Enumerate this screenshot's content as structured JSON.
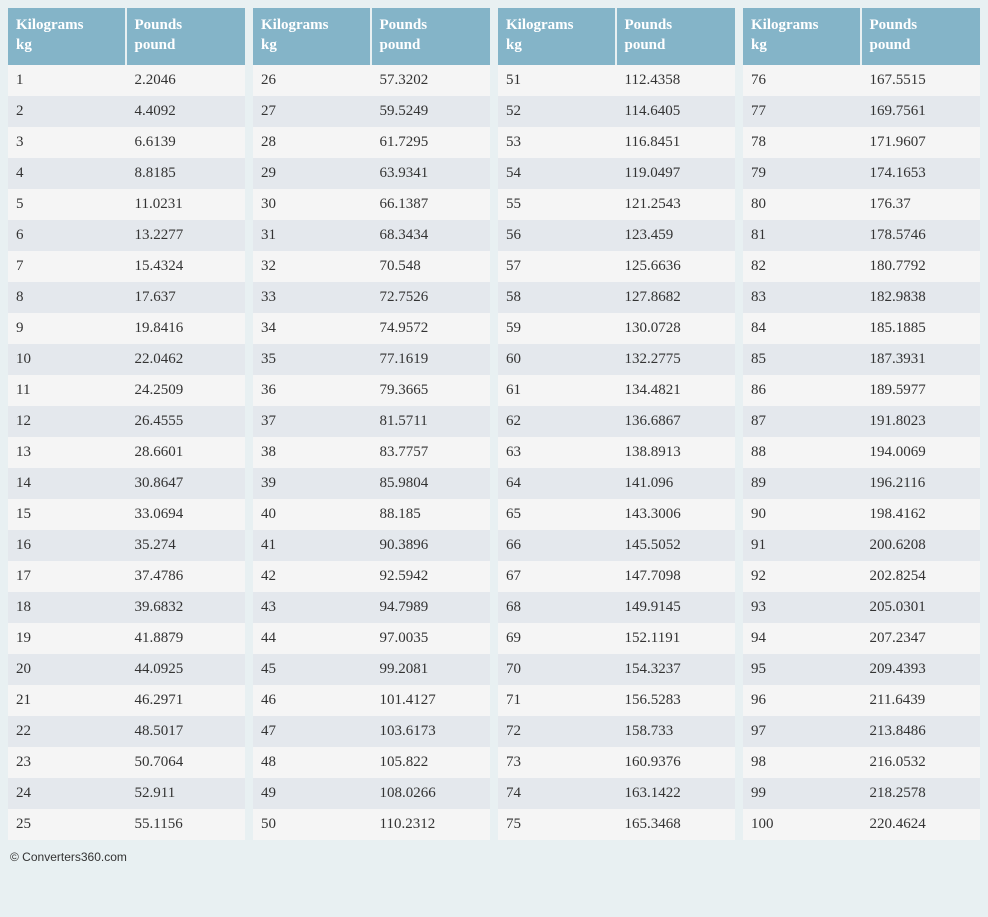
{
  "colors": {
    "page_bg": "#e8f0f2",
    "header_bg": "#84b4c8",
    "header_text": "#ffffff",
    "row_odd_bg": "#f5f5f5",
    "row_even_bg": "#e4e8ed",
    "cell_text": "#333333"
  },
  "typography": {
    "body_font": "Georgia, serif",
    "header_fontsize": 15,
    "cell_fontsize": 15,
    "copyright_font": "Arial, sans-serif",
    "copyright_fontsize": 12
  },
  "headers": {
    "kg_line1": "Kilograms",
    "kg_line2": "kg",
    "lb_line1": "Pounds",
    "lb_line2": "pound"
  },
  "copyright": "© Converters360.com",
  "tables": [
    {
      "rows": [
        {
          "kg": "1",
          "lb": "2.2046"
        },
        {
          "kg": "2",
          "lb": "4.4092"
        },
        {
          "kg": "3",
          "lb": "6.6139"
        },
        {
          "kg": "4",
          "lb": "8.8185"
        },
        {
          "kg": "5",
          "lb": "11.0231"
        },
        {
          "kg": "6",
          "lb": "13.2277"
        },
        {
          "kg": "7",
          "lb": "15.4324"
        },
        {
          "kg": "8",
          "lb": "17.637"
        },
        {
          "kg": "9",
          "lb": "19.8416"
        },
        {
          "kg": "10",
          "lb": "22.0462"
        },
        {
          "kg": "11",
          "lb": "24.2509"
        },
        {
          "kg": "12",
          "lb": "26.4555"
        },
        {
          "kg": "13",
          "lb": "28.6601"
        },
        {
          "kg": "14",
          "lb": "30.8647"
        },
        {
          "kg": "15",
          "lb": "33.0694"
        },
        {
          "kg": "16",
          "lb": "35.274"
        },
        {
          "kg": "17",
          "lb": "37.4786"
        },
        {
          "kg": "18",
          "lb": "39.6832"
        },
        {
          "kg": "19",
          "lb": "41.8879"
        },
        {
          "kg": "20",
          "lb": "44.0925"
        },
        {
          "kg": "21",
          "lb": "46.2971"
        },
        {
          "kg": "22",
          "lb": "48.5017"
        },
        {
          "kg": "23",
          "lb": "50.7064"
        },
        {
          "kg": "24",
          "lb": "52.911"
        },
        {
          "kg": "25",
          "lb": "55.1156"
        }
      ]
    },
    {
      "rows": [
        {
          "kg": "26",
          "lb": "57.3202"
        },
        {
          "kg": "27",
          "lb": "59.5249"
        },
        {
          "kg": "28",
          "lb": "61.7295"
        },
        {
          "kg": "29",
          "lb": "63.9341"
        },
        {
          "kg": "30",
          "lb": "66.1387"
        },
        {
          "kg": "31",
          "lb": "68.3434"
        },
        {
          "kg": "32",
          "lb": "70.548"
        },
        {
          "kg": "33",
          "lb": "72.7526"
        },
        {
          "kg": "34",
          "lb": "74.9572"
        },
        {
          "kg": "35",
          "lb": "77.1619"
        },
        {
          "kg": "36",
          "lb": "79.3665"
        },
        {
          "kg": "37",
          "lb": "81.5711"
        },
        {
          "kg": "38",
          "lb": "83.7757"
        },
        {
          "kg": "39",
          "lb": "85.9804"
        },
        {
          "kg": "40",
          "lb": "88.185"
        },
        {
          "kg": "41",
          "lb": "90.3896"
        },
        {
          "kg": "42",
          "lb": "92.5942"
        },
        {
          "kg": "43",
          "lb": "94.7989"
        },
        {
          "kg": "44",
          "lb": "97.0035"
        },
        {
          "kg": "45",
          "lb": "99.2081"
        },
        {
          "kg": "46",
          "lb": "101.4127"
        },
        {
          "kg": "47",
          "lb": "103.6173"
        },
        {
          "kg": "48",
          "lb": "105.822"
        },
        {
          "kg": "49",
          "lb": "108.0266"
        },
        {
          "kg": "50",
          "lb": "110.2312"
        }
      ]
    },
    {
      "rows": [
        {
          "kg": "51",
          "lb": "112.4358"
        },
        {
          "kg": "52",
          "lb": "114.6405"
        },
        {
          "kg": "53",
          "lb": "116.8451"
        },
        {
          "kg": "54",
          "lb": "119.0497"
        },
        {
          "kg": "55",
          "lb": "121.2543"
        },
        {
          "kg": "56",
          "lb": "123.459"
        },
        {
          "kg": "57",
          "lb": "125.6636"
        },
        {
          "kg": "58",
          "lb": "127.8682"
        },
        {
          "kg": "59",
          "lb": "130.0728"
        },
        {
          "kg": "60",
          "lb": "132.2775"
        },
        {
          "kg": "61",
          "lb": "134.4821"
        },
        {
          "kg": "62",
          "lb": "136.6867"
        },
        {
          "kg": "63",
          "lb": "138.8913"
        },
        {
          "kg": "64",
          "lb": "141.096"
        },
        {
          "kg": "65",
          "lb": "143.3006"
        },
        {
          "kg": "66",
          "lb": "145.5052"
        },
        {
          "kg": "67",
          "lb": "147.7098"
        },
        {
          "kg": "68",
          "lb": "149.9145"
        },
        {
          "kg": "69",
          "lb": "152.1191"
        },
        {
          "kg": "70",
          "lb": "154.3237"
        },
        {
          "kg": "71",
          "lb": "156.5283"
        },
        {
          "kg": "72",
          "lb": "158.733"
        },
        {
          "kg": "73",
          "lb": "160.9376"
        },
        {
          "kg": "74",
          "lb": "163.1422"
        },
        {
          "kg": "75",
          "lb": "165.3468"
        }
      ]
    },
    {
      "rows": [
        {
          "kg": "76",
          "lb": "167.5515"
        },
        {
          "kg": "77",
          "lb": "169.7561"
        },
        {
          "kg": "78",
          "lb": "171.9607"
        },
        {
          "kg": "79",
          "lb": "174.1653"
        },
        {
          "kg": "80",
          "lb": "176.37"
        },
        {
          "kg": "81",
          "lb": "178.5746"
        },
        {
          "kg": "82",
          "lb": "180.7792"
        },
        {
          "kg": "83",
          "lb": "182.9838"
        },
        {
          "kg": "84",
          "lb": "185.1885"
        },
        {
          "kg": "85",
          "lb": "187.3931"
        },
        {
          "kg": "86",
          "lb": "189.5977"
        },
        {
          "kg": "87",
          "lb": "191.8023"
        },
        {
          "kg": "88",
          "lb": "194.0069"
        },
        {
          "kg": "89",
          "lb": "196.2116"
        },
        {
          "kg": "90",
          "lb": "198.4162"
        },
        {
          "kg": "91",
          "lb": "200.6208"
        },
        {
          "kg": "92",
          "lb": "202.8254"
        },
        {
          "kg": "93",
          "lb": "205.0301"
        },
        {
          "kg": "94",
          "lb": "207.2347"
        },
        {
          "kg": "95",
          "lb": "209.4393"
        },
        {
          "kg": "96",
          "lb": "211.6439"
        },
        {
          "kg": "97",
          "lb": "213.8486"
        },
        {
          "kg": "98",
          "lb": "216.0532"
        },
        {
          "kg": "99",
          "lb": "218.2578"
        },
        {
          "kg": "100",
          "lb": "220.4624"
        }
      ]
    }
  ]
}
